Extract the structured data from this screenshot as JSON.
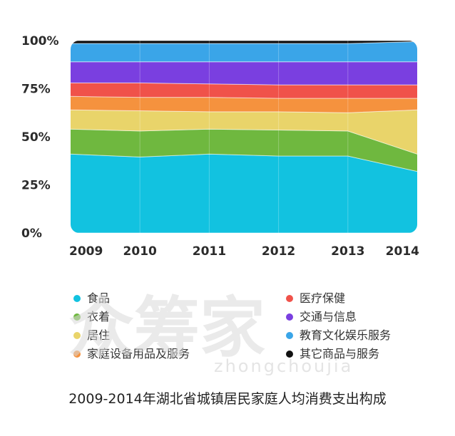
{
  "chart_data": {
    "type": "area",
    "stacked": true,
    "normalized": true,
    "categories": [
      "2009",
      "2010",
      "2011",
      "2012",
      "2013",
      "2014"
    ],
    "ylim": [
      0,
      100
    ],
    "yticks": [
      "0%",
      "25%",
      "50%",
      "75%",
      "100%"
    ],
    "series": [
      {
        "name": "食品",
        "color": "#12c2e0",
        "values": [
          41,
          39.5,
          41,
          40,
          40,
          32
        ]
      },
      {
        "name": "衣着",
        "color": "#6fb83f",
        "values": [
          13,
          13.5,
          13,
          13.5,
          13,
          9
        ]
      },
      {
        "name": "居住",
        "color": "#e9d46a",
        "values": [
          10,
          10.5,
          9,
          9.5,
          9.5,
          23
        ]
      },
      {
        "name": "家庭设备用品及服务",
        "color": "#f5923e",
        "values": [
          7,
          7,
          7.5,
          7,
          7.5,
          6
        ]
      },
      {
        "name": "医疗保健",
        "color": "#f0524a",
        "values": [
          7,
          7.5,
          7,
          7,
          7,
          7
        ]
      },
      {
        "name": "交通与信息",
        "color": "#7a3fe0",
        "values": [
          11,
          11,
          11.5,
          12,
          12,
          12
        ]
      },
      {
        "name": "教育文化娱乐服务",
        "color": "#3aa5e8",
        "values": [
          9.5,
          9.5,
          9.5,
          9.5,
          9.5,
          10.5
        ]
      },
      {
        "name": "其它商品与服务",
        "color": "#111111",
        "values": [
          1.5,
          1.5,
          1.5,
          1.5,
          1.5,
          0.5
        ]
      }
    ],
    "title": "2009-2014年湖北省城镇居民家庭人均消费支出构成",
    "legend_position": "bottom",
    "grid": false
  },
  "watermark": {
    "main": "众筹家",
    "sub": "zhongchoujia"
  }
}
